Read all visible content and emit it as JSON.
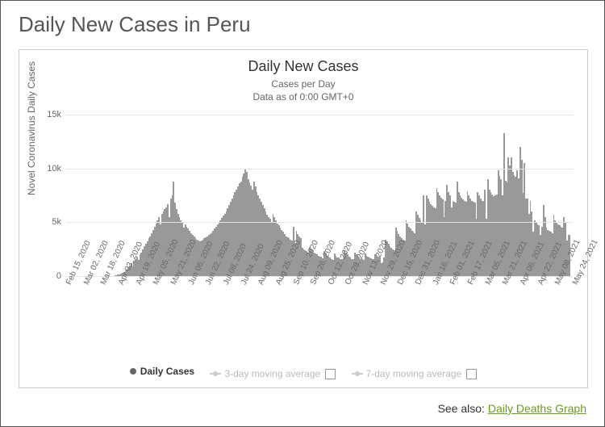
{
  "page": {
    "title": "Daily New Cases in Peru"
  },
  "chart": {
    "type": "bar",
    "title": "Daily New Cases",
    "subtitle_line1": "Cases per Day",
    "subtitle_line2": "Data as of 0:00 GMT+0",
    "yaxis_label": "Novel Coronavirus Daily Cases",
    "ylim": [
      0,
      15000
    ],
    "yticks": [
      {
        "v": 0,
        "label": "0"
      },
      {
        "v": 5000,
        "label": "5k"
      },
      {
        "v": 10000,
        "label": "10k"
      },
      {
        "v": 15000,
        "label": "15k"
      }
    ],
    "bar_color": "#999999",
    "grid_color": "#e6e6e6",
    "background_color": "#ffffff",
    "title_fontsize": 18,
    "subtitle_fontsize": 12,
    "label_fontsize": 12,
    "tick_fontsize": 11,
    "xtick_fontsize": 10,
    "xtick_rotation_deg": -65,
    "xticks": [
      "Feb 15, 2020",
      "Mar 02, 2020",
      "Mar 18, 2020",
      "Apr 03, 2020",
      "Apr 19, 2020",
      "May 05, 2020",
      "May 21, 2020",
      "Jun 06, 2020",
      "Jun 22, 2020",
      "Jul 08, 2020",
      "Jul 24, 2020",
      "Aug 09, 2020",
      "Aug 25, 2020",
      "Sep 10, 2020",
      "Sep 26, 2020",
      "Oct 12, 2020",
      "Oct 28, 2020",
      "Nov 13, 2020",
      "Nov 29, 2020",
      "Dec 15, 2020",
      "Dec 31, 2020",
      "Jan 16, 2021",
      "Feb 01, 2021",
      "Feb 17, 2021",
      "Mar 05, 2021",
      "Mar 21, 2021",
      "Apr 06, 2021",
      "Apr 22, 2021",
      "May 08, 2021",
      "May 24, 2021"
    ],
    "values": [
      0,
      0,
      0,
      0,
      0,
      0,
      0,
      0,
      0,
      0,
      0,
      0,
      0,
      0,
      0,
      0,
      0,
      0,
      0,
      0,
      0,
      0,
      0,
      0,
      0,
      0,
      0,
      0,
      0,
      0,
      0,
      0,
      20,
      50,
      80,
      120,
      180,
      250,
      300,
      400,
      500,
      600,
      800,
      1000,
      1200,
      900,
      1400,
      1600,
      1800,
      1500,
      2000,
      2200,
      2500,
      2800,
      3000,
      3200,
      3500,
      3700,
      4000,
      4300,
      4600,
      4900,
      5200,
      5500,
      4800,
      5800,
      6000,
      6200,
      6400,
      6700,
      5500,
      7200,
      7500,
      8800,
      6800,
      6200,
      5800,
      5500,
      5200,
      5000,
      4500,
      4800,
      4600,
      4400,
      4200,
      4000,
      3800,
      3700,
      3500,
      3400,
      3300,
      3200,
      3300,
      3400,
      3500,
      3600,
      3700,
      3800,
      3900,
      4000,
      4200,
      4400,
      4600,
      4800,
      5000,
      5200,
      5400,
      5600,
      5800,
      6000,
      6300,
      6600,
      6900,
      7200,
      7500,
      7800,
      8000,
      8300,
      8600,
      8800,
      9200,
      9500,
      10000,
      9700,
      9000,
      8700,
      8400,
      8000,
      8800,
      8300,
      7800,
      7500,
      7200,
      6900,
      6600,
      6300,
      6000,
      5700,
      5500,
      5300,
      5000,
      5800,
      5500,
      5200,
      4900,
      4700,
      4500,
      4300,
      4100,
      3900,
      3700,
      3600,
      3500,
      3400,
      3300,
      4600,
      3000,
      4200,
      3900,
      3700,
      3500,
      2600,
      2500,
      2400,
      2300,
      2200,
      2700,
      2500,
      2400,
      2200,
      2100,
      2000,
      1900,
      1800,
      1800,
      1635,
      2300,
      2100,
      1900,
      1800,
      1700,
      1600,
      1526,
      2100,
      1900,
      1749,
      1700,
      1600,
      1550,
      1670,
      2400,
      2200,
      2000,
      1800,
      1700,
      1600,
      1550,
      2200,
      2000,
      1800,
      1700,
      1600,
      1550,
      1500,
      2100,
      1900,
      1800,
      1700,
      1650,
      1600,
      1550,
      2000,
      1900,
      1800,
      1750,
      1200,
      1300,
      1700,
      3400,
      3200,
      3000,
      2800,
      2600,
      2500,
      2400,
      4500,
      4200,
      3900,
      3700,
      3500,
      3400,
      3300,
      5200,
      4900,
      4600,
      4400,
      4200,
      4100,
      4000,
      6000,
      5700,
      5400,
      5200,
      5000,
      7500,
      4800,
      7500,
      7200,
      6900,
      6700,
      6500,
      6400,
      6300,
      8200,
      7800,
      7500,
      7300,
      7100,
      5500,
      7000,
      8500,
      7800,
      7500,
      6400,
      7000,
      6900,
      6800,
      8800,
      7800,
      7500,
      7300,
      7100,
      7000,
      6900,
      7900,
      7500,
      7200,
      7000,
      6900,
      6800,
      5300,
      7800,
      7500,
      7200,
      7000,
      7000,
      8000,
      5300,
      9000,
      8000,
      7800,
      7600,
      7400,
      7500,
      7600,
      9800,
      9300,
      9000,
      7500,
      13300,
      8852,
      8700,
      11000,
      10300,
      11000,
      9700,
      9400,
      9200,
      9800,
      9100,
      12000,
      10800,
      7700,
      10500,
      7200,
      7200,
      5800,
      7000,
      6000,
      4100,
      5200,
      5000,
      4800,
      4700,
      3800,
      4600,
      6600,
      5500,
      4500,
      4300,
      4200,
      4100,
      4000,
      5700,
      5200,
      5000,
      4800,
      4700,
      4600,
      4500,
      5500,
      5000,
      3300,
      3800,
      3800
    ]
  },
  "legend": {
    "daily_cases": {
      "label": "Daily Cases",
      "color": "#666666",
      "active": true
    },
    "ma3": {
      "label": "3-day moving average",
      "color": "#cccccc",
      "active": false
    },
    "ma7": {
      "label": "7-day moving average",
      "color": "#cccccc",
      "active": false
    }
  },
  "footer": {
    "prefix": "See also: ",
    "link_text": "Daily Deaths Graph",
    "link_color": "#6b9b1f"
  }
}
